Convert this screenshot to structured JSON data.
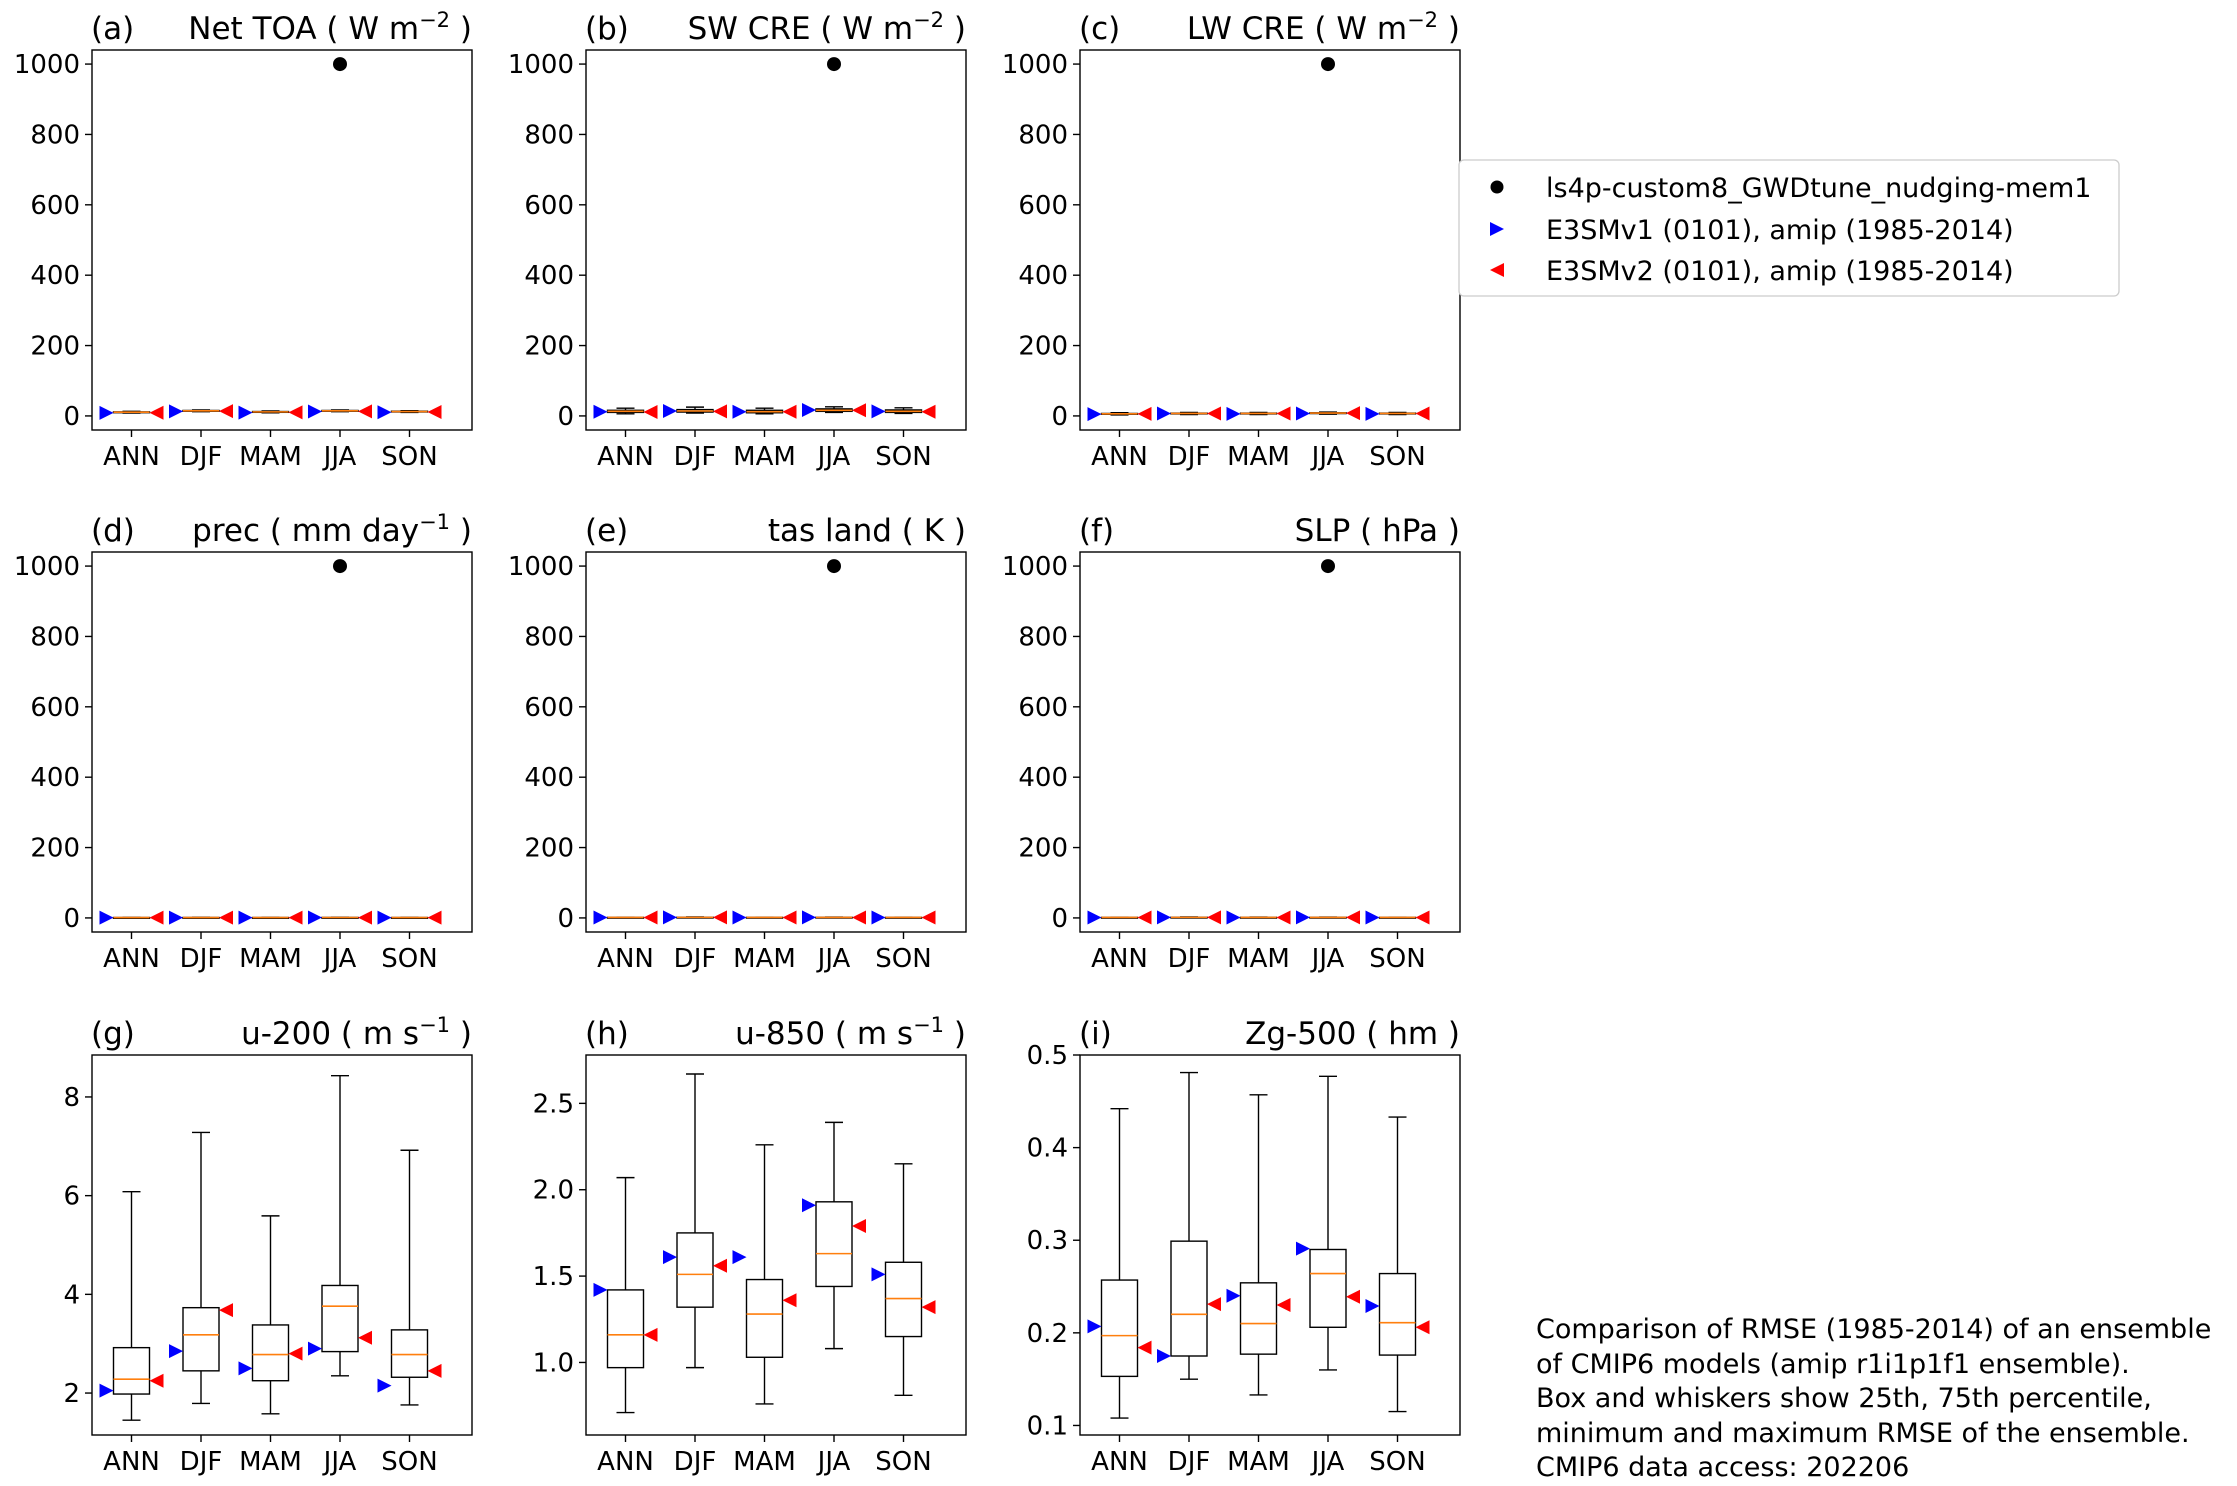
{
  "panels": [
    {
      "id": "a",
      "letter": "(a)",
      "title_main": "Net TOA ( W m",
      "title_sup": "−2",
      "title_end": " )",
      "ylim": [
        -40,
        1040
      ],
      "yticks": [
        "0",
        "200",
        "400",
        "600",
        "800",
        "1000"
      ],
      "box": [
        [
          8.0,
          9.5,
          10.5,
          11.5,
          13.0
        ],
        [
          12.0,
          13.5,
          14.5,
          15.5,
          17.0
        ],
        [
          9.0,
          10.5,
          11.5,
          12.5,
          14.0
        ],
        [
          12.0,
          13.5,
          14.5,
          15.5,
          17.0
        ],
        [
          10.0,
          11.5,
          12.5,
          13.5,
          15.0
        ]
      ],
      "v1": [
        8.5,
        13.0,
        9.5,
        12.5,
        10.5
      ],
      "v2": [
        9.0,
        13.5,
        10.0,
        13.0,
        11.0
      ],
      "test": [
        null,
        null,
        null,
        1000,
        null
      ]
    },
    {
      "id": "b",
      "letter": "(b)",
      "title_main": "SW CRE ( W m",
      "title_sup": "−2",
      "title_end": " )",
      "ylim": [
        -40,
        1040
      ],
      "yticks": [
        "0",
        "200",
        "400",
        "600",
        "800",
        "1000"
      ],
      "box": [
        [
          6,
          10,
          13,
          16,
          22
        ],
        [
          8,
          11,
          14,
          18,
          25
        ],
        [
          6,
          9,
          12,
          16,
          22
        ],
        [
          10,
          13,
          16,
          20,
          26
        ],
        [
          7,
          10,
          13,
          17,
          23
        ]
      ],
      "v1": [
        12,
        14,
        12,
        17,
        13
      ],
      "v2": [
        11,
        13,
        12,
        16,
        12
      ],
      "test": [
        null,
        null,
        null,
        1000,
        null
      ]
    },
    {
      "id": "c",
      "letter": "(c)",
      "title_main": "LW CRE ( W m",
      "title_sup": "−2",
      "title_end": " )",
      "ylim": [
        -40,
        1040
      ],
      "yticks": [
        "0",
        "200",
        "400",
        "600",
        "800",
        "1000"
      ],
      "box": [
        [
          3,
          5,
          6,
          7,
          9
        ],
        [
          4,
          6,
          7,
          8,
          10
        ],
        [
          4,
          6,
          7,
          8,
          10
        ],
        [
          5,
          7,
          8,
          9,
          11
        ],
        [
          4,
          6,
          7,
          8,
          10
        ]
      ],
      "v1": [
        5,
        7,
        6,
        7,
        6
      ],
      "v2": [
        6,
        7,
        7,
        8,
        7
      ],
      "test": [
        null,
        null,
        null,
        1000,
        null
      ]
    },
    {
      "id": "d",
      "letter": "(d)",
      "title_main": "prec ( mm day",
      "title_sup": "−1",
      "title_end": " )",
      "ylim": [
        -40,
        1040
      ],
      "yticks": [
        "0",
        "200",
        "400",
        "600",
        "800",
        "1000"
      ],
      "box": [
        [
          0.6,
          0.8,
          1.0,
          1.2,
          1.5
        ],
        [
          0.7,
          0.9,
          1.1,
          1.3,
          1.6
        ],
        [
          0.6,
          0.8,
          1.0,
          1.2,
          1.5
        ],
        [
          0.8,
          1.0,
          1.2,
          1.4,
          1.7
        ],
        [
          0.6,
          0.8,
          1.0,
          1.2,
          1.5
        ]
      ],
      "v1": [
        0.9,
        1.0,
        0.9,
        1.1,
        0.9
      ],
      "v2": [
        0.8,
        0.9,
        0.9,
        1.0,
        0.9
      ],
      "test": [
        null,
        null,
        null,
        1000,
        null
      ]
    },
    {
      "id": "e",
      "letter": "(e)",
      "title_main": "tas land ( K",
      "title_sup": "",
      "title_end": " )",
      "ylim": [
        -40,
        1040
      ],
      "yticks": [
        "0",
        "200",
        "400",
        "600",
        "800",
        "1000"
      ],
      "box": [
        [
          0.8,
          1.0,
          1.3,
          1.6,
          2.0
        ],
        [
          1.0,
          1.3,
          1.6,
          2.0,
          2.6
        ],
        [
          0.8,
          1.1,
          1.4,
          1.7,
          2.2
        ],
        [
          0.9,
          1.2,
          1.5,
          1.9,
          2.4
        ],
        [
          0.8,
          1.0,
          1.3,
          1.6,
          2.1
        ]
      ],
      "v1": [
        1.2,
        1.5,
        1.3,
        1.4,
        1.2
      ],
      "v2": [
        1.1,
        1.4,
        1.2,
        1.3,
        1.1
      ],
      "test": [
        null,
        null,
        null,
        1000,
        null
      ]
    },
    {
      "id": "f",
      "letter": "(f)",
      "title_main": "SLP ( hPa",
      "title_sup": "",
      "title_end": " )",
      "ylim": [
        -40,
        1040
      ],
      "yticks": [
        "0",
        "200",
        "400",
        "600",
        "800",
        "1000"
      ],
      "box": [
        [
          0.8,
          1.0,
          1.3,
          1.6,
          2.1
        ],
        [
          1.0,
          1.3,
          1.6,
          2.0,
          2.8
        ],
        [
          0.8,
          1.1,
          1.4,
          1.7,
          2.3
        ],
        [
          0.9,
          1.1,
          1.4,
          1.8,
          2.5
        ],
        [
          0.8,
          1.0,
          1.3,
          1.6,
          2.2
        ]
      ],
      "v1": [
        1.3,
        1.6,
        1.3,
        1.5,
        1.2
      ],
      "v2": [
        1.2,
        1.5,
        1.2,
        1.4,
        1.1
      ],
      "test": [
        null,
        null,
        null,
        1000,
        null
      ]
    },
    {
      "id": "g",
      "letter": "(g)",
      "title_main": "u-200 ( m s",
      "title_sup": "−1",
      "title_end": " )",
      "ylim": [
        1.15,
        8.85
      ],
      "yticks": [
        "2",
        "4",
        "6",
        "8"
      ],
      "ytick_values": [
        2,
        4,
        6,
        8
      ],
      "box": [
        [
          1.45,
          1.98,
          2.28,
          2.92,
          6.08
        ],
        [
          1.79,
          2.45,
          3.18,
          3.73,
          7.28
        ],
        [
          1.58,
          2.25,
          2.78,
          3.38,
          5.59
        ],
        [
          2.35,
          2.84,
          3.76,
          4.18,
          8.43
        ],
        [
          1.76,
          2.32,
          2.78,
          3.28,
          6.92
        ]
      ],
      "v1": [
        2.05,
        2.85,
        2.5,
        2.9,
        2.15
      ],
      "v2": [
        2.25,
        3.68,
        2.8,
        3.12,
        2.45
      ],
      "test": [
        null,
        null,
        null,
        null,
        null
      ]
    },
    {
      "id": "h",
      "letter": "(h)",
      "title_main": "u-850 ( m s",
      "title_sup": "−1",
      "title_end": " )",
      "ylim": [
        0.58,
        2.78
      ],
      "yticks": [
        "1.0",
        "1.5",
        "2.0",
        "2.5"
      ],
      "ytick_values": [
        1.0,
        1.5,
        2.0,
        2.5
      ],
      "box": [
        [
          0.71,
          0.97,
          1.16,
          1.42,
          2.07
        ],
        [
          0.97,
          1.32,
          1.51,
          1.75,
          2.67
        ],
        [
          0.76,
          1.03,
          1.28,
          1.48,
          2.26
        ],
        [
          1.08,
          1.44,
          1.63,
          1.93,
          2.39
        ],
        [
          0.81,
          1.15,
          1.37,
          1.58,
          2.15
        ]
      ],
      "v1": [
        1.42,
        1.61,
        1.61,
        1.91,
        1.51
      ],
      "v2": [
        1.16,
        1.56,
        1.36,
        1.79,
        1.32
      ],
      "test": [
        null,
        null,
        null,
        null,
        null
      ]
    },
    {
      "id": "i",
      "letter": "(i)",
      "title_main": "Zg-500 ( hm",
      "title_sup": "",
      "title_end": " )",
      "ylim": [
        0.0897,
        0.5
      ],
      "yticks": [
        "0.1",
        "0.2",
        "0.3",
        "0.4",
        "0.5"
      ],
      "ytick_values": [
        0.1,
        0.2,
        0.3,
        0.4,
        0.5
      ],
      "box": [
        [
          0.108,
          0.153,
          0.197,
          0.257,
          0.442
        ],
        [
          0.15,
          0.175,
          0.22,
          0.299,
          0.481
        ],
        [
          0.133,
          0.177,
          0.21,
          0.254,
          0.457
        ],
        [
          0.16,
          0.206,
          0.264,
          0.29,
          0.477
        ],
        [
          0.115,
          0.176,
          0.211,
          0.264,
          0.433
        ]
      ],
      "v1": [
        0.207,
        0.175,
        0.24,
        0.291,
        0.229
      ],
      "v2": [
        0.184,
        0.231,
        0.23,
        0.239,
        0.206
      ],
      "test": [
        null,
        null,
        null,
        null,
        null
      ]
    }
  ],
  "chart_data": {
    "type": "box",
    "categories": [
      "ANN",
      "DJF",
      "MAM",
      "JJA",
      "SON"
    ],
    "series": [
      {
        "name": "ls4p-custom8_GWDtune_nudging-mem1",
        "marker": "circle",
        "color": "#000000"
      },
      {
        "name": "E3SMv1 (0101), amip (1985-2014)",
        "marker": "triangle-right",
        "color": "#0000ff"
      },
      {
        "name": "E3SMv2 (0101), amip (1985-2014)",
        "marker": "triangle-left",
        "color": "#ff0000"
      }
    ],
    "legend_placement": "right of top row",
    "grid": false,
    "box_color": "#000000",
    "median_color": "#ff7f0e"
  },
  "legend": {
    "items": [
      "ls4p-custom8_GWDtune_nudging-mem1",
      "E3SMv1 (0101), amip (1985-2014)",
      "E3SMv2 (0101), amip (1985-2014)"
    ]
  },
  "caption": {
    "lines": [
      "Comparison of RMSE (1985-2014) of an ensemble",
      "of CMIP6 models (amip r1i1p1f1 ensemble).",
      "Box and whiskers show 25th, 75th percentile,",
      "minimum and maximum RMSE of the ensemble.",
      "CMIP6 data access: 202206"
    ]
  }
}
